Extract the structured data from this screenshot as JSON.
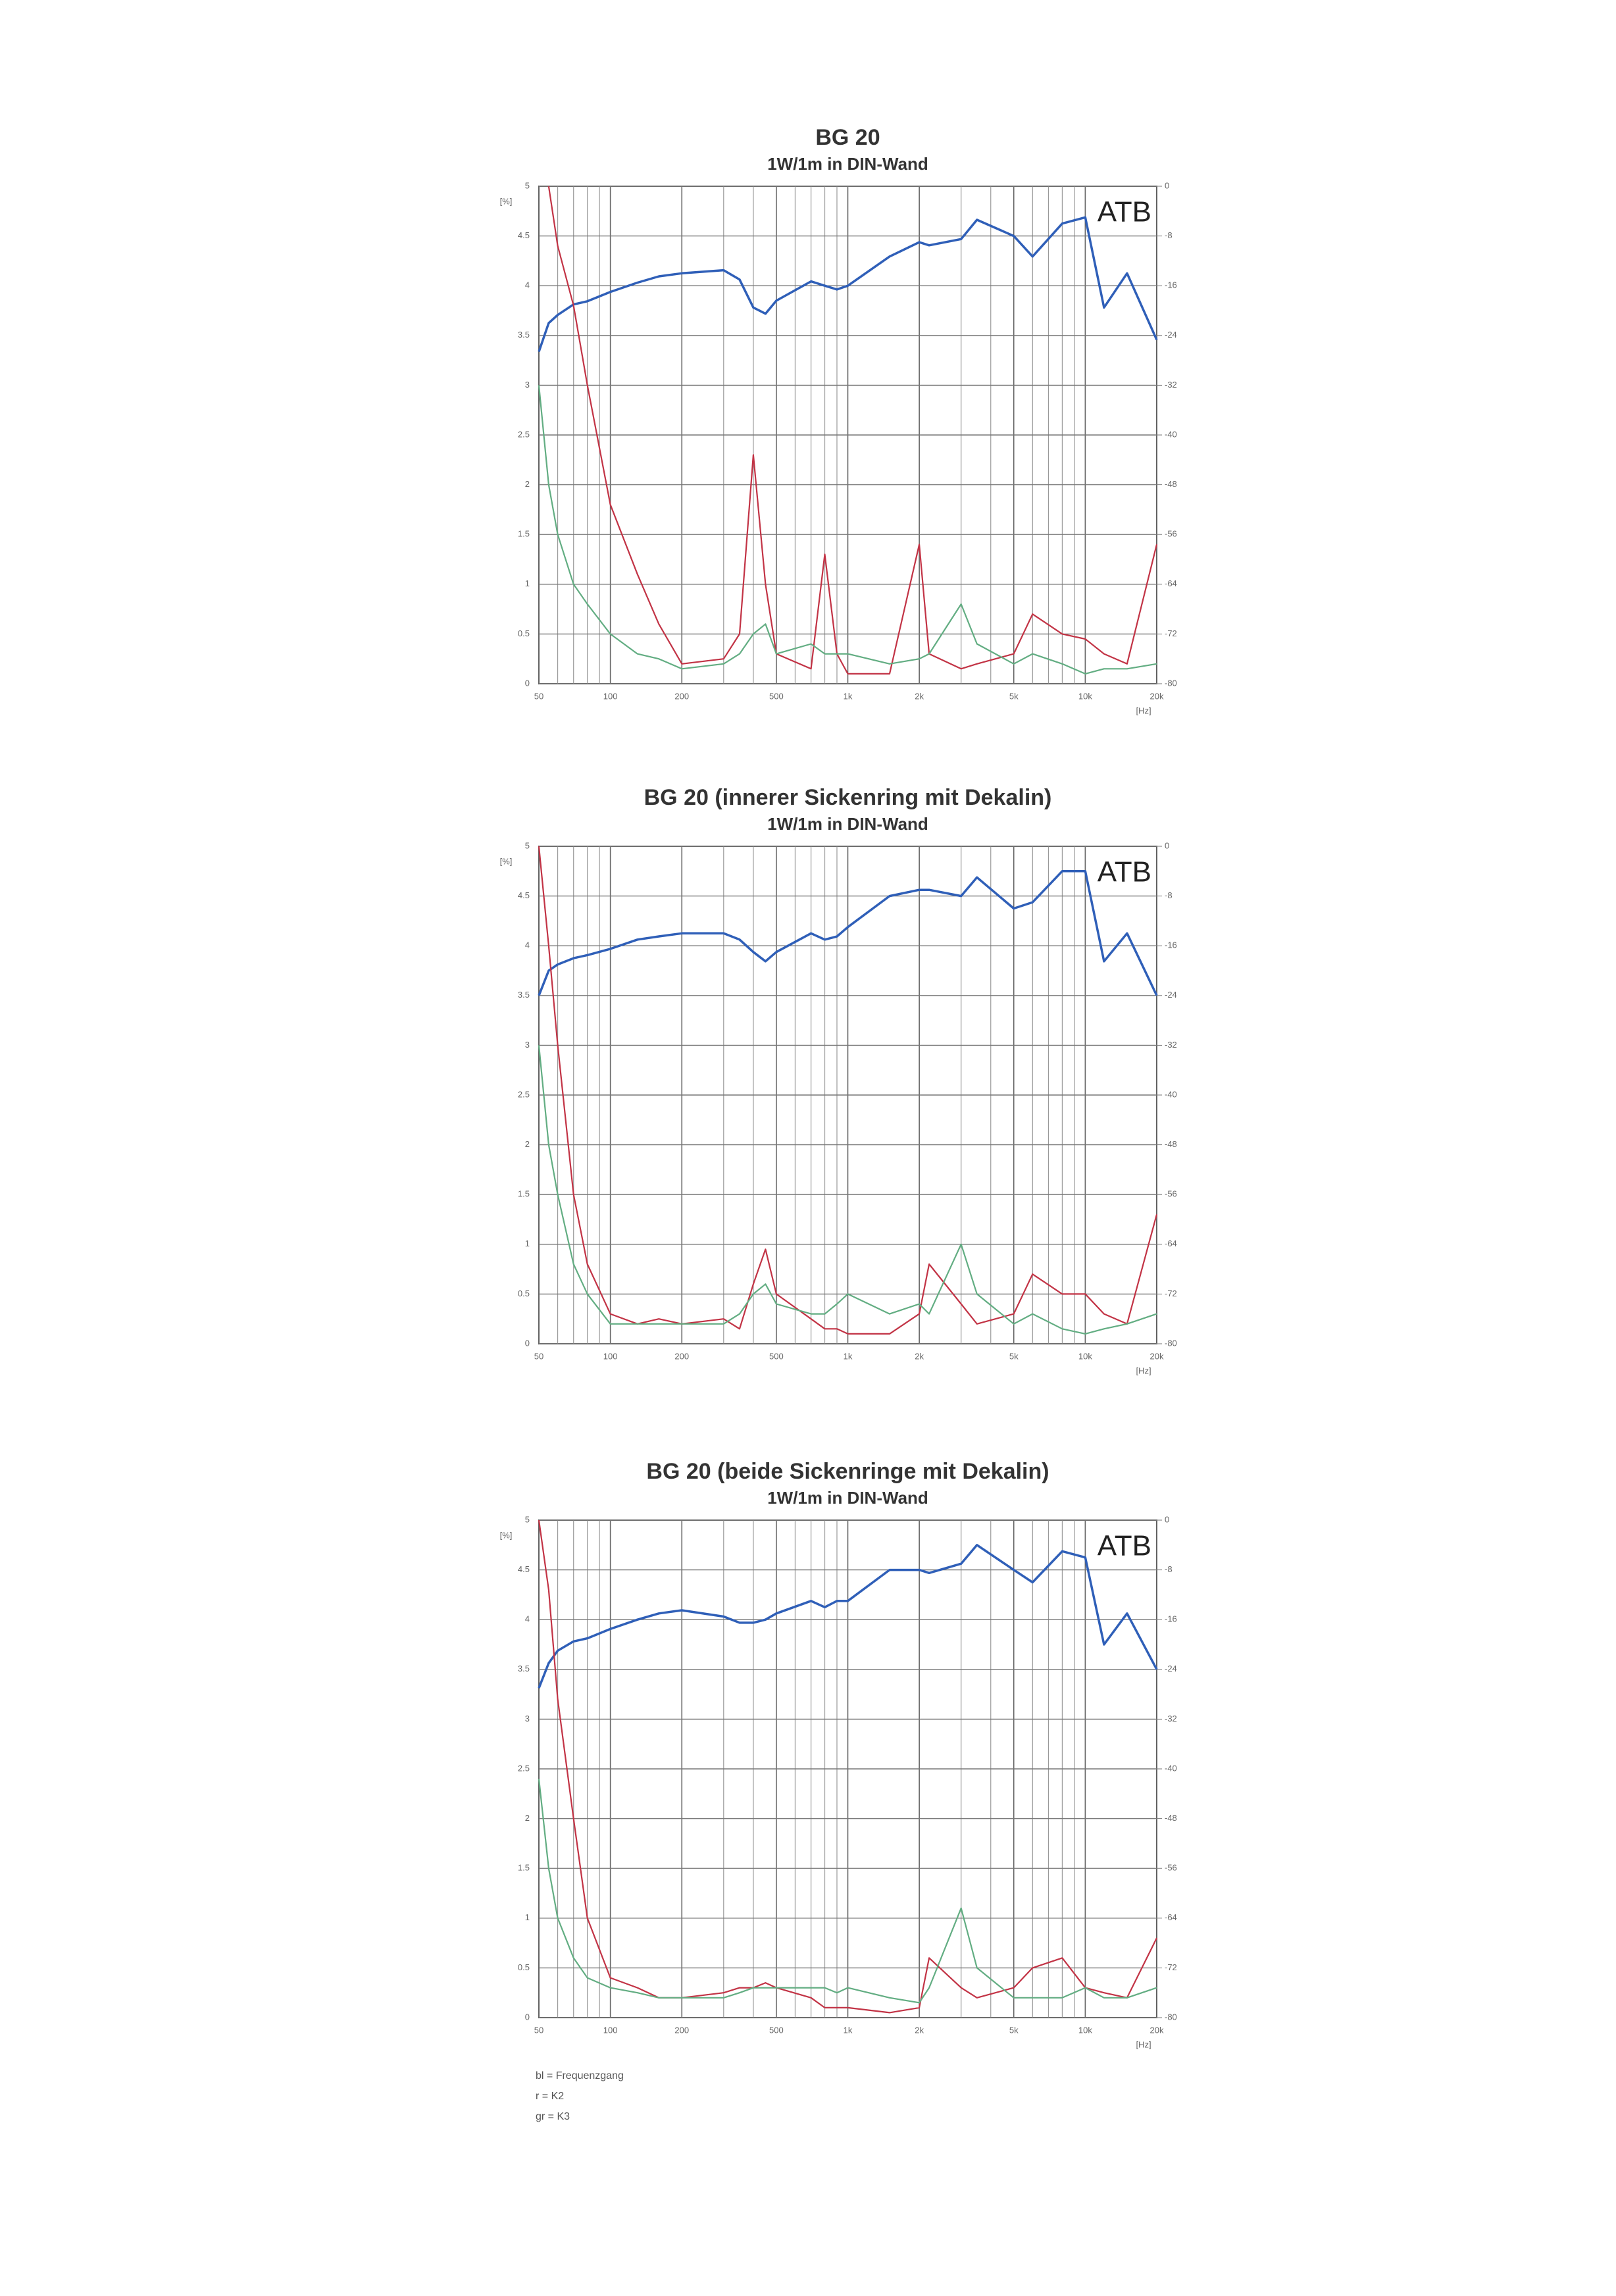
{
  "chart_data": [
    {
      "type": "line",
      "title": "BG 20",
      "subtitle": "1W/1m in DIN-Wand",
      "watermark": "ATB",
      "y_label": "[%]",
      "x_label": "[Hz]",
      "xscale": "log",
      "grid": true,
      "x": [
        50,
        55,
        60,
        70,
        80,
        100,
        130,
        160,
        200,
        300,
        350,
        400,
        450,
        500,
        700,
        800,
        900,
        1000,
        1500,
        2000,
        2200,
        3000,
        3500,
        5000,
        6000,
        8000,
        10000,
        12000,
        15000,
        20000
      ],
      "xlim": [
        50,
        20000
      ],
      "xticks": [
        50,
        100,
        200,
        500,
        {
          "value": 1000,
          "label": "1k"
        },
        {
          "value": 2000,
          "label": "2k"
        },
        {
          "value": 5000,
          "label": "5k"
        },
        {
          "value": 10000,
          "label": "10k"
        },
        {
          "value": 20000,
          "label": "20k"
        }
      ],
      "xgrid_minor": [
        60,
        70,
        80,
        90,
        300,
        400,
        600,
        700,
        800,
        900,
        3000,
        4000,
        6000,
        7000,
        8000,
        9000
      ],
      "ylim": [
        0,
        5
      ],
      "yticks": [
        0,
        0.5,
        1,
        1.5,
        2,
        2.5,
        3,
        3.5,
        4,
        4.5,
        5
      ],
      "y2lim": [
        -80,
        0
      ],
      "y2ticks": [
        0,
        -8,
        -16,
        -24,
        -32,
        -40,
        -48,
        -56,
        -64,
        -72,
        -80
      ],
      "series": [
        {
          "color": "#2f5fb8",
          "axis": "y2",
          "values": [
            -26.6,
            -22,
            -20.7,
            -19,
            -18.5,
            -17,
            -15.5,
            -14.5,
            -14,
            -13.5,
            -15,
            -19.5,
            -20.5,
            -18.4,
            -15.3,
            -16,
            -16.6,
            -16,
            -11.3,
            -9,
            -9.5,
            -8.5,
            -5.4,
            -8,
            -11.3,
            -6,
            -5,
            -19.5,
            -14,
            -24.7
          ]
        },
        {
          "color": "#c23345",
          "values": [
            null,
            5,
            4.4,
            3.8,
            3.0,
            1.8,
            1.1,
            0.6,
            0.2,
            0.25,
            0.5,
            2.3,
            1.0,
            0.3,
            0.15,
            1.3,
            0.3,
            0.1,
            0.1,
            1.4,
            0.3,
            0.15,
            0.2,
            0.3,
            0.7,
            0.5,
            0.45,
            0.3,
            0.2,
            1.4
          ]
        },
        {
          "color": "#62ad82",
          "values": [
            3.0,
            2.0,
            1.5,
            1.0,
            0.8,
            0.5,
            0.3,
            0.25,
            0.15,
            0.2,
            0.3,
            0.5,
            0.6,
            0.3,
            0.4,
            0.3,
            0.3,
            0.3,
            0.2,
            0.25,
            0.3,
            0.8,
            0.4,
            0.2,
            0.3,
            0.2,
            0.1,
            0.15,
            0.15,
            0.2
          ]
        }
      ]
    },
    {
      "type": "line",
      "title": "BG 20 (innerer Sickenring mit Dekalin)",
      "subtitle": "1W/1m in DIN-Wand",
      "watermark": "ATB",
      "y_label": "[%]",
      "x_label": "[Hz]",
      "xscale": "log",
      "grid": true,
      "x": [
        50,
        55,
        60,
        70,
        80,
        100,
        130,
        160,
        200,
        300,
        350,
        400,
        450,
        500,
        700,
        800,
        900,
        1000,
        1500,
        2000,
        2200,
        3000,
        3500,
        5000,
        6000,
        8000,
        10000,
        12000,
        15000,
        20000
      ],
      "xlim": [
        50,
        20000
      ],
      "xticks": [
        50,
        100,
        200,
        500,
        {
          "value": 1000,
          "label": "1k"
        },
        {
          "value": 2000,
          "label": "2k"
        },
        {
          "value": 5000,
          "label": "5k"
        },
        {
          "value": 10000,
          "label": "10k"
        },
        {
          "value": 20000,
          "label": "20k"
        }
      ],
      "xgrid_minor": [
        60,
        70,
        80,
        90,
        300,
        400,
        600,
        700,
        800,
        900,
        3000,
        4000,
        6000,
        7000,
        8000,
        9000
      ],
      "ylim": [
        0,
        5
      ],
      "yticks": [
        0,
        0.5,
        1,
        1.5,
        2,
        2.5,
        3,
        3.5,
        4,
        4.5,
        5
      ],
      "y2lim": [
        -80,
        0
      ],
      "y2ticks": [
        0,
        -8,
        -16,
        -24,
        -32,
        -40,
        -48,
        -56,
        -64,
        -72,
        -80
      ],
      "series": [
        {
          "color": "#2f5fb8",
          "axis": "y2",
          "values": [
            -24,
            -20,
            -19,
            -18,
            -17.5,
            -16.5,
            -15,
            -14.5,
            -14,
            -14,
            -15,
            -17,
            -18.5,
            -17,
            -14,
            -15,
            -14.5,
            -13,
            -8,
            -7,
            -7,
            -8,
            -5,
            -10,
            -9,
            -4,
            -4,
            -18.5,
            -14,
            -24
          ]
        },
        {
          "color": "#c23345",
          "values": [
            5,
            4,
            3,
            1.5,
            0.8,
            0.3,
            0.2,
            0.25,
            0.2,
            0.25,
            0.15,
            0.6,
            0.95,
            0.5,
            0.25,
            0.15,
            0.15,
            0.1,
            0.1,
            0.3,
            0.8,
            0.4,
            0.2,
            0.3,
            0.7,
            0.5,
            0.5,
            0.3,
            0.2,
            1.3
          ]
        },
        {
          "color": "#62ad82",
          "values": [
            3.0,
            2.0,
            1.5,
            0.8,
            0.5,
            0.2,
            0.2,
            0.2,
            0.2,
            0.2,
            0.3,
            0.5,
            0.6,
            0.4,
            0.3,
            0.3,
            0.4,
            0.5,
            0.3,
            0.4,
            0.3,
            1.0,
            0.5,
            0.2,
            0.3,
            0.15,
            0.1,
            0.15,
            0.2,
            0.3
          ]
        }
      ]
    },
    {
      "type": "line",
      "title": "BG 20 (beide Sickenringe mit Dekalin)",
      "subtitle": "1W/1m in DIN-Wand",
      "watermark": "ATB",
      "y_label": "[%]",
      "x_label": "[Hz]",
      "xscale": "log",
      "grid": true,
      "x": [
        50,
        55,
        60,
        70,
        80,
        100,
        130,
        160,
        200,
        300,
        350,
        400,
        450,
        500,
        700,
        800,
        900,
        1000,
        1500,
        2000,
        2200,
        3000,
        3500,
        5000,
        6000,
        8000,
        10000,
        12000,
        15000,
        20000
      ],
      "xlim": [
        50,
        20000
      ],
      "xticks": [
        50,
        100,
        200,
        500,
        {
          "value": 1000,
          "label": "1k"
        },
        {
          "value": 2000,
          "label": "2k"
        },
        {
          "value": 5000,
          "label": "5k"
        },
        {
          "value": 10000,
          "label": "10k"
        },
        {
          "value": 20000,
          "label": "20k"
        }
      ],
      "xgrid_minor": [
        60,
        70,
        80,
        90,
        300,
        400,
        600,
        700,
        800,
        900,
        3000,
        4000,
        6000,
        7000,
        8000,
        9000
      ],
      "ylim": [
        0,
        5
      ],
      "yticks": [
        0,
        0.5,
        1,
        1.5,
        2,
        2.5,
        3,
        3.5,
        4,
        4.5,
        5
      ],
      "y2lim": [
        -80,
        0
      ],
      "y2ticks": [
        0,
        -8,
        -16,
        -24,
        -32,
        -40,
        -48,
        -56,
        -64,
        -72,
        -80
      ],
      "series": [
        {
          "color": "#2f5fb8",
          "axis": "y2",
          "values": [
            -27,
            -23,
            -21,
            -19.5,
            -19,
            -17.5,
            -16,
            -15,
            -14.5,
            -15.5,
            -16.5,
            -16.5,
            -16,
            -15,
            -13,
            -14,
            -13,
            -13,
            -8,
            -8,
            -8.5,
            -7,
            -4,
            -8,
            -10,
            -5,
            -6,
            -20,
            -15,
            -24
          ]
        },
        {
          "color": "#c23345",
          "values": [
            5,
            4.3,
            3.2,
            2.0,
            1.0,
            0.4,
            0.3,
            0.2,
            0.2,
            0.25,
            0.3,
            0.3,
            0.35,
            0.3,
            0.2,
            0.1,
            0.1,
            0.1,
            0.05,
            0.1,
            0.6,
            0.3,
            0.2,
            0.3,
            0.5,
            0.6,
            0.3,
            0.25,
            0.2,
            0.8
          ]
        },
        {
          "color": "#62ad82",
          "values": [
            2.4,
            1.5,
            1.0,
            0.6,
            0.4,
            0.3,
            0.25,
            0.2,
            0.2,
            0.2,
            0.25,
            0.3,
            0.3,
            0.3,
            0.3,
            0.3,
            0.25,
            0.3,
            0.2,
            0.15,
            0.3,
            1.1,
            0.5,
            0.2,
            0.2,
            0.2,
            0.3,
            0.2,
            0.2,
            0.3
          ]
        }
      ]
    }
  ],
  "legend": [
    "bl = Frequenzgang",
    "r = K2",
    "gr = K3"
  ]
}
